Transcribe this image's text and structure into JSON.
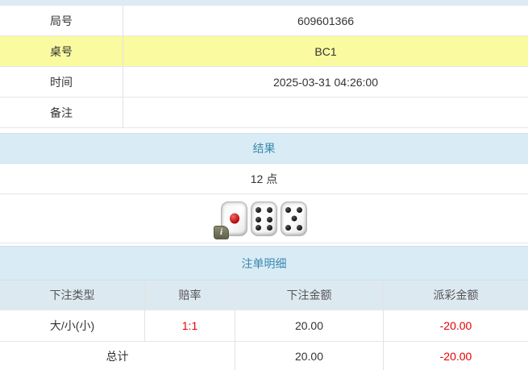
{
  "colors": {
    "strip-bg": "#dcebf4",
    "highlight-bg": "#fafaa0",
    "header-bg": "#d9ecf6",
    "header-text": "#3a87ad",
    "table-head-bg": "#dde9f1",
    "negative": "#e60000"
  },
  "info_table": {
    "rows": [
      {
        "label": "局号",
        "value": "609601366",
        "highlight": false
      },
      {
        "label": "桌号",
        "value": "BC1",
        "highlight": true
      },
      {
        "label": "时间",
        "value": "2025-03-31 04:26:00",
        "highlight": false
      },
      {
        "label": "备注",
        "value": "",
        "highlight": false
      }
    ]
  },
  "result_section": {
    "header": "结果",
    "points": "12 点",
    "dice": [
      {
        "value": 1,
        "color": "red",
        "info_badge": true
      },
      {
        "value": 6,
        "color": "black",
        "info_badge": false
      },
      {
        "value": 5,
        "color": "black",
        "info_badge": false
      }
    ],
    "info_badge_label": "i"
  },
  "bets_section": {
    "header": "注单明细",
    "columns": [
      "下注类型",
      "赔率",
      "下注金额",
      "派彩金额"
    ],
    "rows": [
      {
        "type": "大/小(小)",
        "odds": "1:1",
        "amount": "20.00",
        "payout": "-20.00"
      }
    ],
    "total": {
      "label": "总计",
      "amount": "20.00",
      "payout": "-20.00"
    }
  }
}
